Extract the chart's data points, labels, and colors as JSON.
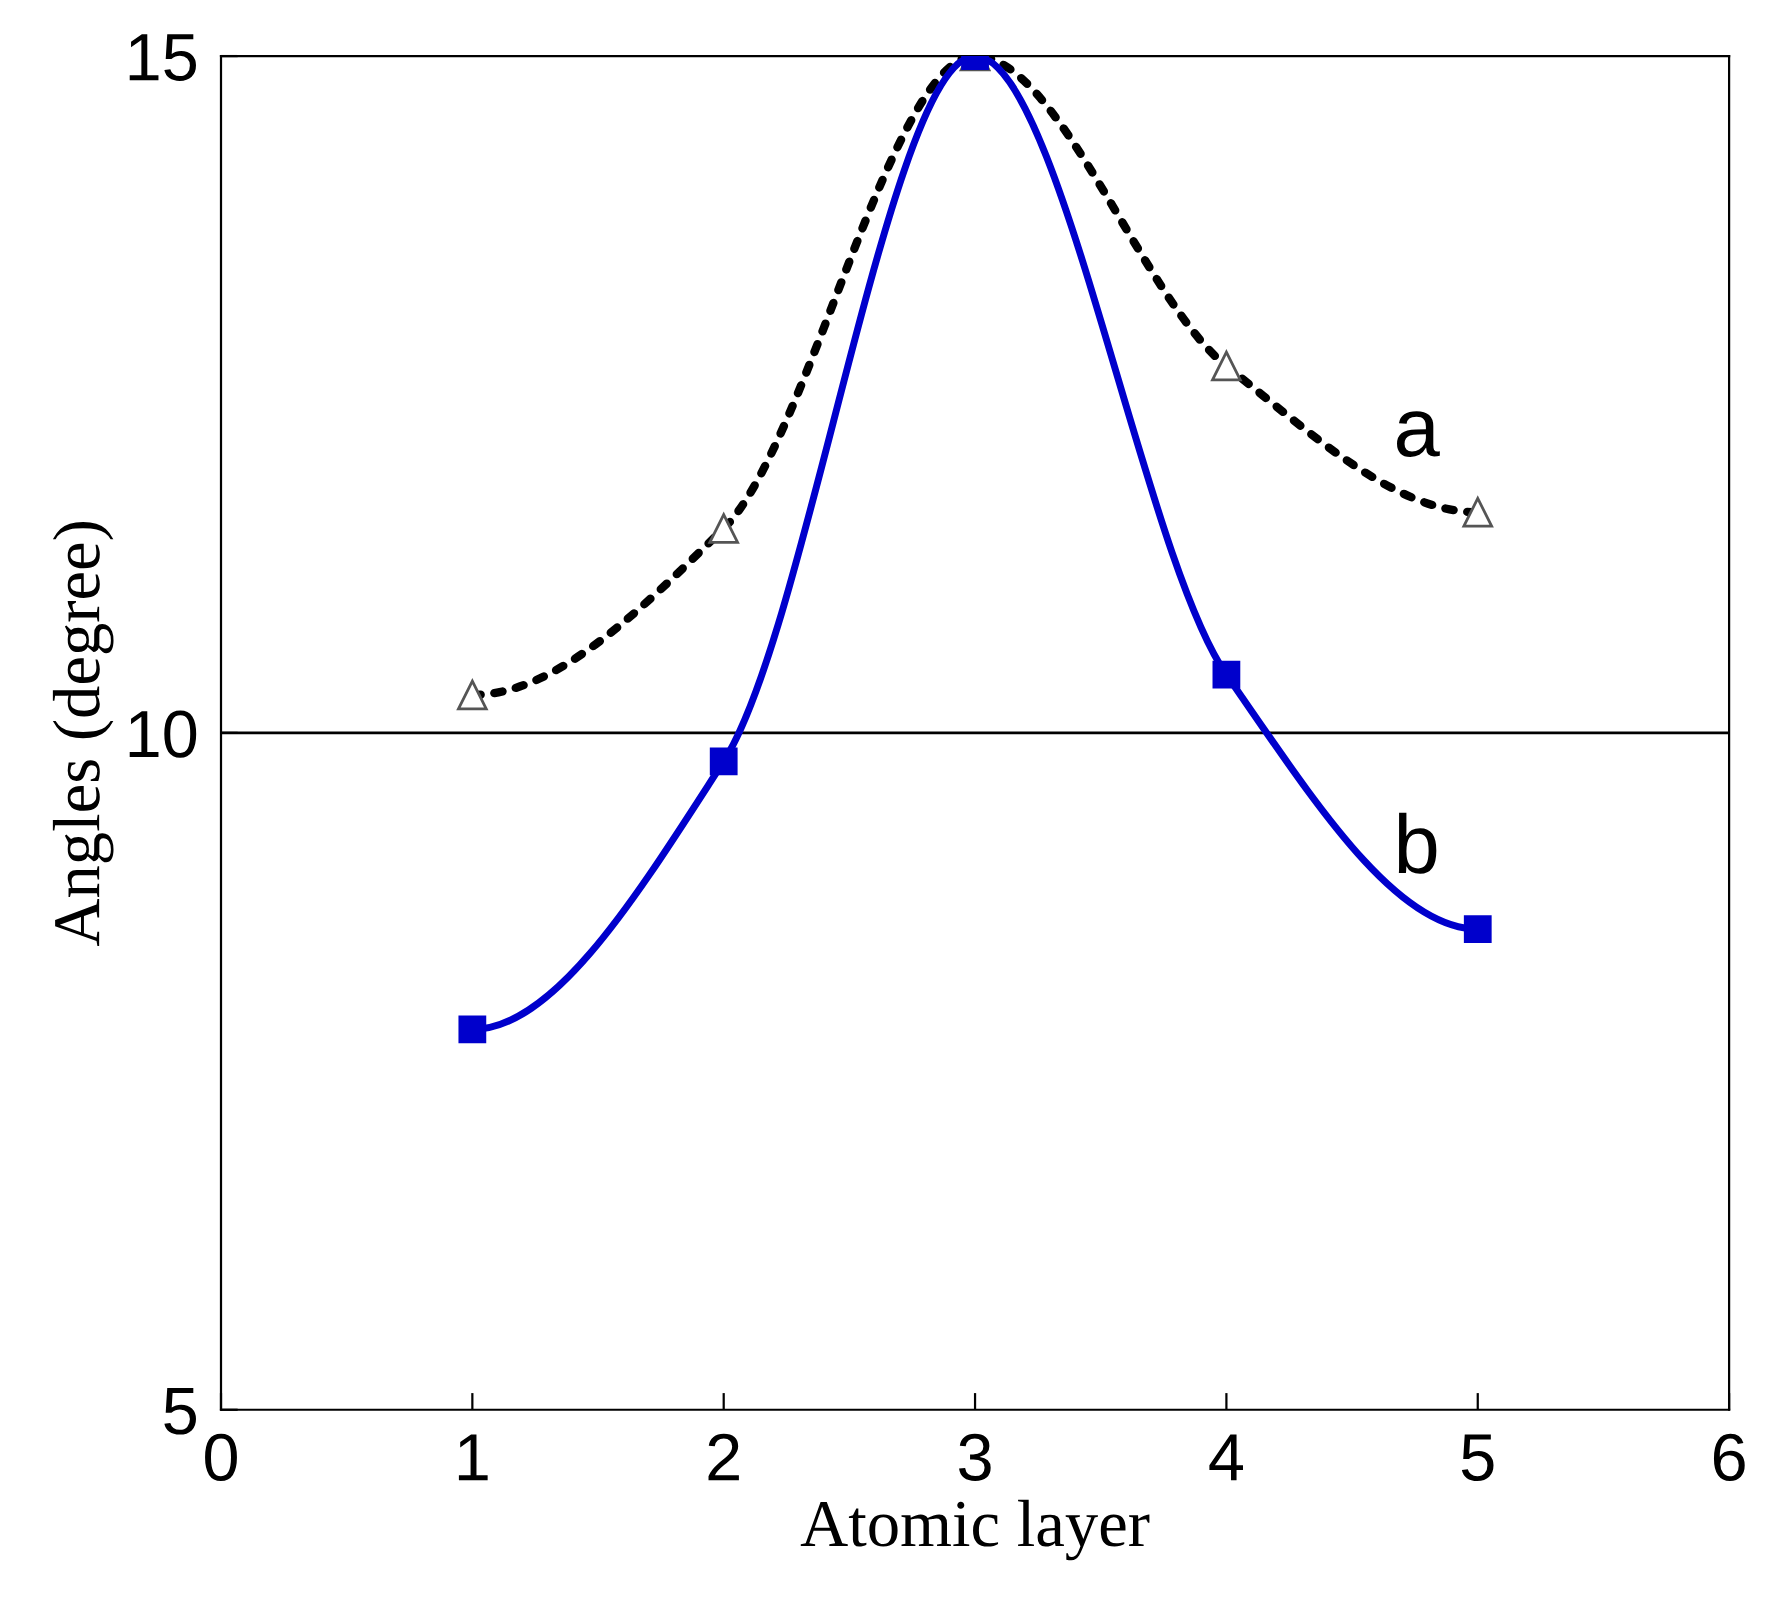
{
  "chart_data": {
    "type": "line",
    "xlabel": "Atomic layer",
    "ylabel": "Angles (degree)",
    "x": [
      1,
      2,
      3,
      4,
      5
    ],
    "series": [
      {
        "name": "a",
        "color": "#000000",
        "values": [
          10.28,
          11.51,
          15.0,
          12.71,
          11.63
        ],
        "marker": "triangle",
        "line_style": "dotted"
      },
      {
        "name": "b",
        "color": "#0000cc",
        "values": [
          7.81,
          9.79,
          15.0,
          10.43,
          8.55
        ],
        "marker": "square",
        "line_style": "solid"
      }
    ],
    "xlim": [
      0,
      6
    ],
    "xticks": [
      0,
      1,
      2,
      3,
      4,
      5,
      6
    ],
    "ylim": [
      5,
      15
    ],
    "yticks": [
      5,
      10,
      15
    ],
    "ref_lines": [
      {
        "axis": "y",
        "value": 10,
        "color": "#000000"
      }
    ],
    "grid": false,
    "legend": false
  }
}
